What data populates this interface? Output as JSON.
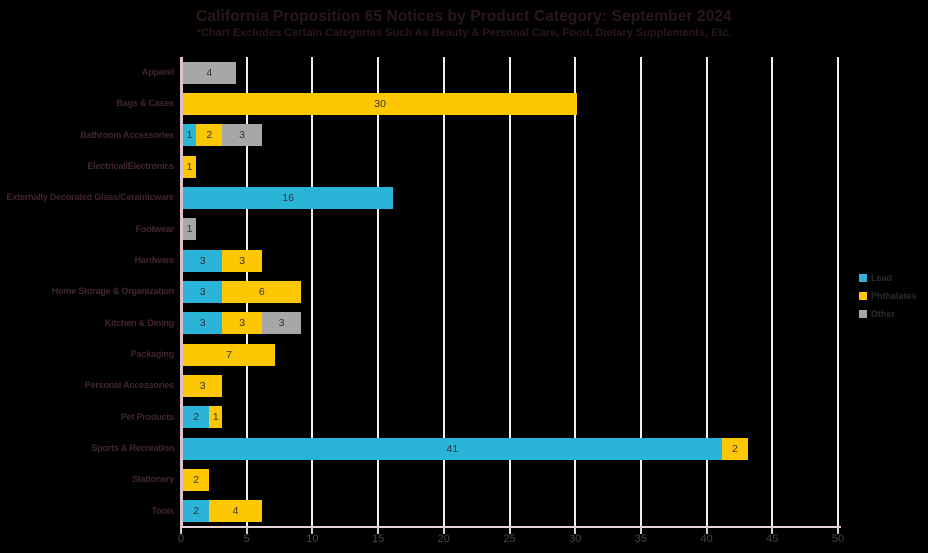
{
  "chart_data": {
    "type": "bar",
    "orientation": "horizontal",
    "stacked": true,
    "title": "California Proposition 65 Notices by Product Category: September 2024",
    "subtitle": "*Chart Excludes Certain Categories Such As Beauty & Personal Care, Food, Dietary Supplements, Etc.",
    "categories": [
      "Apparel",
      "Bags & Cases",
      "Bathroom Accessories",
      "Electrical/Electronics",
      "Externally Decorated Glass/Ceramicware",
      "Footwear",
      "Hardware",
      "Home Storage & Organization",
      "Kitchen & Dining",
      "Packaging",
      "Personal Accessories",
      "Pet Products",
      "Sports & Recreation",
      "Stationery",
      "Tools"
    ],
    "series": [
      {
        "name": "Lead",
        "color": "#29b4d8",
        "values": [
          0,
          0,
          1,
          0,
          16,
          0,
          3,
          3,
          3,
          0,
          0,
          2,
          41,
          0,
          2
        ]
      },
      {
        "name": "Phthalates",
        "color": "#fdc704",
        "values": [
          0,
          30,
          2,
          1,
          0,
          0,
          3,
          6,
          3,
          7,
          3,
          1,
          2,
          2,
          4
        ]
      },
      {
        "name": "Other",
        "color": "#a7a7a7",
        "values": [
          4,
          0,
          3,
          0,
          0,
          1,
          0,
          0,
          3,
          0,
          0,
          0,
          0,
          0,
          0
        ]
      }
    ],
    "xlim": [
      0,
      50
    ],
    "xticks": [
      0,
      5,
      10,
      15,
      20,
      25,
      30,
      35,
      40,
      45,
      50
    ],
    "grid": "vertical",
    "grid_color": "#f4eeee",
    "axis_color": "#dcc2c8",
    "legend_position": "right",
    "show_value_labels": true,
    "background_color": "#000000",
    "text_color": "#2a171d"
  }
}
